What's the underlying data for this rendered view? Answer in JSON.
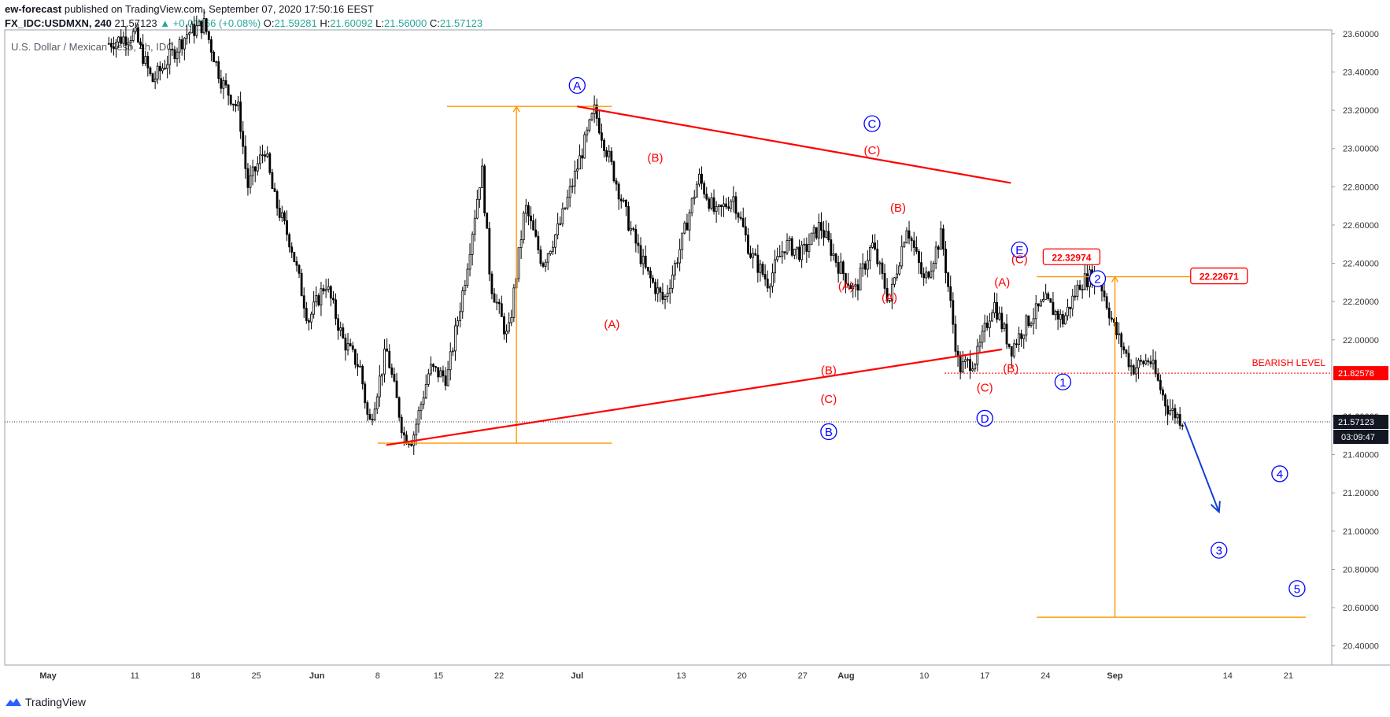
{
  "header": {
    "publisher": "ew-forecast",
    "published_text": " published on TradingView.com, September 07, 2020 17:50:16 EEST",
    "symbol": "FX_IDC:USDMXN, 240",
    "last": "21.57123",
    "change": "▲ +0.01656 (+0.08%)",
    "o_label": "O:",
    "o_val": "21.59281",
    "h_label": "H:",
    "h_val": "21.60092",
    "l_label": "L:",
    "l_val": "21.56000",
    "c_label": "C:",
    "c_val": "21.57123"
  },
  "instrument_label": "U.S. Dollar / Mexican Peso, 4h, IDC",
  "footer": {
    "brand": "TradingView",
    "logo_icon": "tradingview-logo-icon"
  },
  "chart_data": {
    "type": "candlestick",
    "colors": {
      "bars": "#000000",
      "trend": "#ff0000",
      "measure": "#ff9800",
      "wave_blue": "#0000ff",
      "wave_red": "#ff0000",
      "projection": "#1040d0"
    },
    "y_axis": {
      "ylim": [
        20.3,
        23.62
      ],
      "ticks": [
        "23.60000",
        "23.40000",
        "23.20000",
        "23.00000",
        "22.80000",
        "22.60000",
        "22.40000",
        "22.20000",
        "22.00000",
        "21.60000",
        "21.40000",
        "21.20000",
        "21.00000",
        "20.80000",
        "20.60000",
        "20.40000"
      ],
      "tick_values": [
        23.6,
        23.4,
        23.2,
        23.0,
        22.8,
        22.6,
        22.4,
        22.2,
        22.0,
        21.6,
        21.4,
        21.2,
        21.0,
        20.8,
        20.6,
        20.4
      ]
    },
    "x_axis": {
      "start": "2020-04-26",
      "end": "2020-09-26",
      "ticks": [
        {
          "label": "May",
          "date": "2020-05-01",
          "bold": true
        },
        {
          "label": "11",
          "date": "2020-05-11"
        },
        {
          "label": "18",
          "date": "2020-05-18"
        },
        {
          "label": "25",
          "date": "2020-05-25"
        },
        {
          "label": "Jun",
          "date": "2020-06-01",
          "bold": true
        },
        {
          "label": "8",
          "date": "2020-06-08"
        },
        {
          "label": "15",
          "date": "2020-06-15"
        },
        {
          "label": "22",
          "date": "2020-06-22"
        },
        {
          "label": "Jul",
          "date": "2020-07-01",
          "bold": true
        },
        {
          "label": "13",
          "date": "2020-07-13"
        },
        {
          "label": "20",
          "date": "2020-07-20"
        },
        {
          "label": "27",
          "date": "2020-07-27"
        },
        {
          "label": "Aug",
          "date": "2020-08-01",
          "bold": true
        },
        {
          "label": "10",
          "date": "2020-08-10"
        },
        {
          "label": "17",
          "date": "2020-08-17"
        },
        {
          "label": "24",
          "date": "2020-08-24"
        },
        {
          "label": "Sep",
          "date": "2020-09-01",
          "bold": true
        },
        {
          "label": "14",
          "date": "2020-09-14"
        },
        {
          "label": "21",
          "date": "2020-09-21"
        }
      ]
    },
    "price_path": [
      [
        "2020-05-08",
        23.55
      ],
      [
        "2020-05-11",
        23.6
      ],
      [
        "2020-05-13",
        23.35
      ],
      [
        "2020-05-17",
        23.6
      ],
      [
        "2020-05-19",
        23.65
      ],
      [
        "2020-05-21",
        23.35
      ],
      [
        "2020-05-23",
        23.2
      ],
      [
        "2020-05-24",
        22.8
      ],
      [
        "2020-05-26",
        23.0
      ],
      [
        "2020-05-27",
        22.75
      ],
      [
        "2020-05-29",
        22.5
      ],
      [
        "2020-05-31",
        22.1
      ],
      [
        "2020-06-02",
        22.3
      ],
      [
        "2020-06-04",
        22.0
      ],
      [
        "2020-06-06",
        21.85
      ],
      [
        "2020-06-07",
        21.55
      ],
      [
        "2020-06-09",
        21.95
      ],
      [
        "2020-06-11",
        21.5
      ],
      [
        "2020-06-12",
        21.48
      ],
      [
        "2020-06-14",
        21.85
      ],
      [
        "2020-06-16",
        21.8
      ],
      [
        "2020-06-18",
        22.3
      ],
      [
        "2020-06-20",
        22.9
      ],
      [
        "2020-06-21",
        22.3
      ],
      [
        "2020-06-23",
        22.0
      ],
      [
        "2020-06-25",
        22.7
      ],
      [
        "2020-06-27",
        22.4
      ],
      [
        "2020-06-29",
        22.6
      ],
      [
        "2020-07-01",
        22.9
      ],
      [
        "2020-07-03",
        23.2
      ],
      [
        "2020-07-05",
        22.9
      ],
      [
        "2020-07-07",
        22.6
      ],
      [
        "2020-07-09",
        22.35
      ],
      [
        "2020-07-11",
        22.2
      ],
      [
        "2020-07-13",
        22.5
      ],
      [
        "2020-07-15",
        22.85
      ],
      [
        "2020-07-17",
        22.65
      ],
      [
        "2020-07-19",
        22.75
      ],
      [
        "2020-07-21",
        22.45
      ],
      [
        "2020-07-23",
        22.3
      ],
      [
        "2020-07-25",
        22.5
      ],
      [
        "2020-07-27",
        22.45
      ],
      [
        "2020-07-29",
        22.6
      ],
      [
        "2020-07-31",
        22.4
      ],
      [
        "2020-08-02",
        22.25
      ],
      [
        "2020-08-04",
        22.5
      ],
      [
        "2020-08-06",
        22.2
      ],
      [
        "2020-08-08",
        22.6
      ],
      [
        "2020-08-10",
        22.3
      ],
      [
        "2020-08-12",
        22.55
      ],
      [
        "2020-08-14",
        21.85
      ],
      [
        "2020-08-16",
        21.9
      ],
      [
        "2020-08-18",
        22.2
      ],
      [
        "2020-08-20",
        21.95
      ],
      [
        "2020-08-22",
        22.1
      ],
      [
        "2020-08-24",
        22.2
      ],
      [
        "2020-08-26",
        22.1
      ],
      [
        "2020-08-28",
        22.3
      ],
      [
        "2020-08-30",
        22.35
      ],
      [
        "2020-09-01",
        22.05
      ],
      [
        "2020-09-03",
        21.85
      ],
      [
        "2020-09-05",
        21.9
      ],
      [
        "2020-09-07",
        21.65
      ],
      [
        "2020-09-09",
        21.57
      ]
    ],
    "trendlines": [
      {
        "x1": "2020-07-01",
        "y1": 23.22,
        "x2": "2020-08-20",
        "y2": 22.82,
        "color": "#ff0000"
      },
      {
        "x1": "2020-06-09",
        "y1": 21.45,
        "x2": "2020-08-19",
        "y2": 21.95,
        "color": "#ff0000"
      }
    ],
    "measure_lines": [
      {
        "kind": "h",
        "x1": "2020-06-16",
        "x2": "2020-07-05",
        "y": 23.22
      },
      {
        "kind": "h",
        "x1": "2020-06-08",
        "x2": "2020-07-05",
        "y": 21.46
      },
      {
        "kind": "v",
        "x": "2020-06-24",
        "y1": 23.22,
        "y2": 21.46,
        "arrow": "up"
      },
      {
        "kind": "h",
        "x1": "2020-08-23",
        "x2": "2020-09-13",
        "y": 22.33
      },
      {
        "kind": "v",
        "x": "2020-09-01",
        "y1": 22.33,
        "y2": 20.55,
        "arrow": "up"
      },
      {
        "kind": "h",
        "x1": "2020-08-23",
        "x2": "2020-09-23",
        "y": 20.55
      }
    ],
    "price_labels": [
      {
        "text": "22.32974",
        "x": "2020-08-27",
        "y": 22.43
      },
      {
        "text": "22.22671",
        "x": "2020-09-13",
        "y": 22.33
      }
    ],
    "waves_blue": [
      {
        "text": "A",
        "x": "2020-07-01",
        "y": 23.33
      },
      {
        "text": "B",
        "x": "2020-07-30",
        "y": 21.52
      },
      {
        "text": "C",
        "x": "2020-08-04",
        "y": 23.13
      },
      {
        "text": "D",
        "x": "2020-08-17",
        "y": 21.59
      },
      {
        "text": "E",
        "x": "2020-08-21",
        "y": 22.47
      },
      {
        "text": "1",
        "x": "2020-08-26",
        "y": 21.78
      },
      {
        "text": "2",
        "x": "2020-08-30",
        "y": 22.32
      },
      {
        "text": "3",
        "x": "2020-09-13",
        "y": 20.9
      },
      {
        "text": "4",
        "x": "2020-09-20",
        "y": 21.3
      },
      {
        "text": "5",
        "x": "2020-09-22",
        "y": 20.7
      }
    ],
    "waves_red": [
      {
        "text": "(B)",
        "x": "2020-07-10",
        "y": 22.93
      },
      {
        "text": "(A)",
        "x": "2020-07-05",
        "y": 22.06
      },
      {
        "text": "(C)",
        "x": "2020-08-04",
        "y": 22.97
      },
      {
        "text": "(B)",
        "x": "2020-08-07",
        "y": 22.67
      },
      {
        "text": "(A)",
        "x": "2020-08-01",
        "y": 22.26
      },
      {
        "text": "(A)",
        "x": "2020-08-06",
        "y": 22.2
      },
      {
        "text": "(B)",
        "x": "2020-07-30",
        "y": 21.82
      },
      {
        "text": "(C)",
        "x": "2020-07-30",
        "y": 21.67
      },
      {
        "text": "(A)",
        "x": "2020-08-19",
        "y": 22.28
      },
      {
        "text": "(C)",
        "x": "2020-08-21",
        "y": 22.4
      },
      {
        "text": "(B)",
        "x": "2020-08-20",
        "y": 21.83
      },
      {
        "text": "(C)",
        "x": "2020-08-17",
        "y": 21.73
      }
    ],
    "projection_arrow": {
      "x1": "2020-09-09",
      "y1": 21.57,
      "x2": "2020-09-13",
      "y2": 21.1
    },
    "level_line": {
      "label": "BEARISH LEVEL",
      "value": 21.82578,
      "value_text": "21.82578"
    },
    "current_price": {
      "value": 21.57123,
      "value_text": "21.57123",
      "countdown": "03:09:47"
    }
  }
}
